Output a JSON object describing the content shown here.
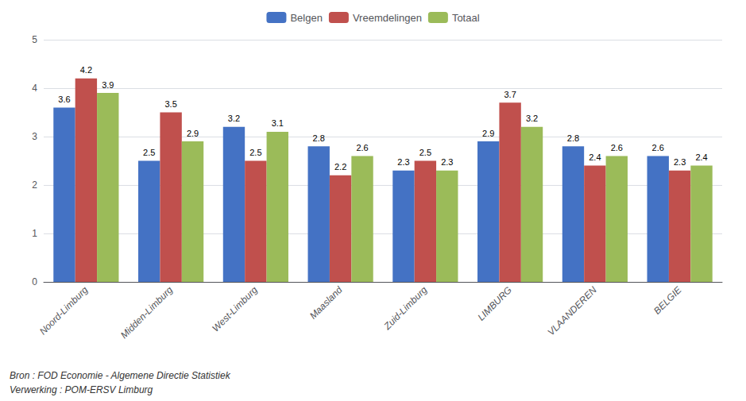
{
  "chart_data": {
    "type": "bar",
    "categories": [
      "Noord-Limburg",
      "Midden-Limburg",
      "West-Limburg",
      "Maasland",
      "Zuid-Limburg",
      "LIMBURG",
      "VLAANDEREN",
      "BELGIE"
    ],
    "series": [
      {
        "name": "Belgen",
        "color": "#4472C4",
        "values": [
          3.6,
          2.5,
          3.2,
          2.8,
          2.3,
          2.9,
          2.8,
          2.6
        ]
      },
      {
        "name": "Vreemdelingen",
        "color": "#C0504D",
        "values": [
          4.2,
          3.5,
          2.5,
          2.2,
          2.5,
          3.7,
          2.4,
          2.3
        ]
      },
      {
        "name": "Totaal",
        "color": "#9BBB59",
        "values": [
          3.9,
          2.9,
          3.1,
          2.6,
          2.3,
          3.2,
          2.6,
          2.4
        ]
      }
    ],
    "ylim": [
      0,
      5
    ],
    "yticks": [
      0,
      1,
      2,
      3,
      4,
      5
    ],
    "grid": true,
    "legend": "top",
    "data_labels": true,
    "annotations": [
      "Bron : FOD Economie - Algemene Directie Statistiek",
      "Verwerking : POM-ERSV Limburg"
    ]
  }
}
